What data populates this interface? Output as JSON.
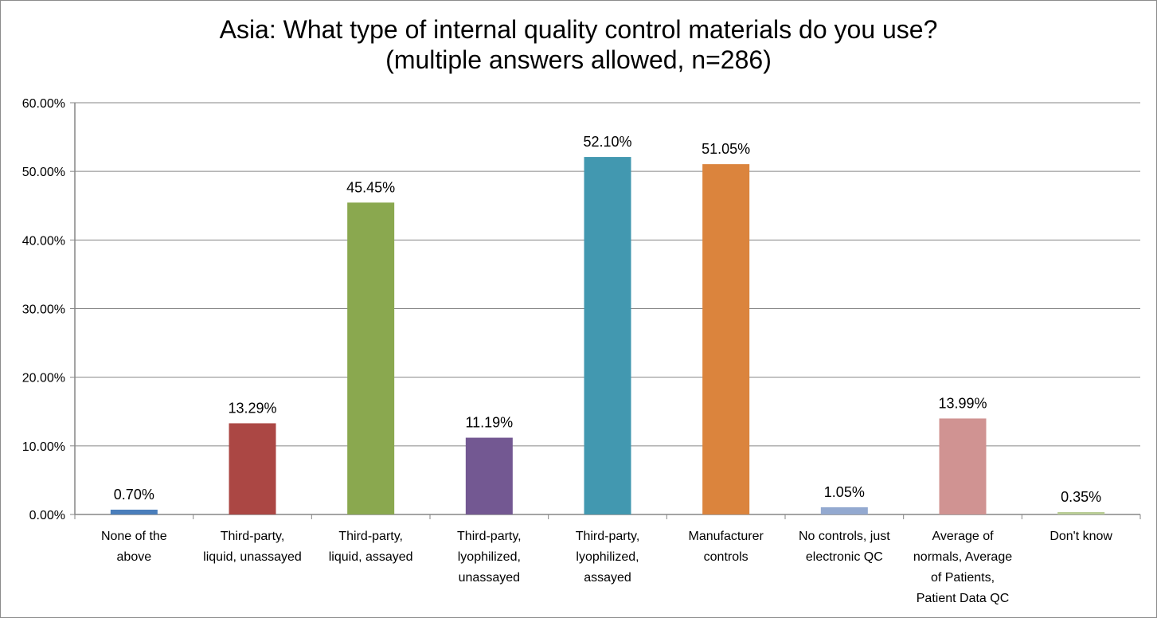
{
  "chart_data": {
    "type": "bar",
    "title_line1": "Asia: What type of internal quality control materials do you use?",
    "title_line2": "(multiple answers allowed, n=286)",
    "categories": [
      [
        "None of the",
        "above"
      ],
      [
        "Third-party,",
        "liquid, unassayed"
      ],
      [
        "Third-party,",
        "liquid, assayed"
      ],
      [
        "Third-party,",
        "lyophilized,",
        "unassayed"
      ],
      [
        "Third-party,",
        "lyophilized,",
        "assayed"
      ],
      [
        "Manufacturer",
        "controls"
      ],
      [
        "No controls, just",
        "electronic QC"
      ],
      [
        "Average of",
        "normals, Average",
        "of Patients,",
        "Patient Data QC"
      ],
      [
        "Don't know"
      ]
    ],
    "values": [
      0.7,
      13.29,
      45.45,
      11.19,
      52.1,
      51.05,
      1.05,
      13.99,
      0.35
    ],
    "data_labels": [
      "0.70%",
      "13.29%",
      "45.45%",
      "11.19%",
      "52.10%",
      "51.05%",
      "1.05%",
      "13.99%",
      "0.35%"
    ],
    "colors": [
      "#4a7ebb",
      "#ab4744",
      "#8aa84f",
      "#735892",
      "#4298b0",
      "#db843d",
      "#93a9d0",
      "#d09392",
      "#b9cd96"
    ],
    "ylim": [
      0,
      60
    ],
    "yticks": [
      "0.00%",
      "10.00%",
      "20.00%",
      "30.00%",
      "40.00%",
      "50.00%",
      "60.00%"
    ],
    "grid": true,
    "legend": "none"
  }
}
